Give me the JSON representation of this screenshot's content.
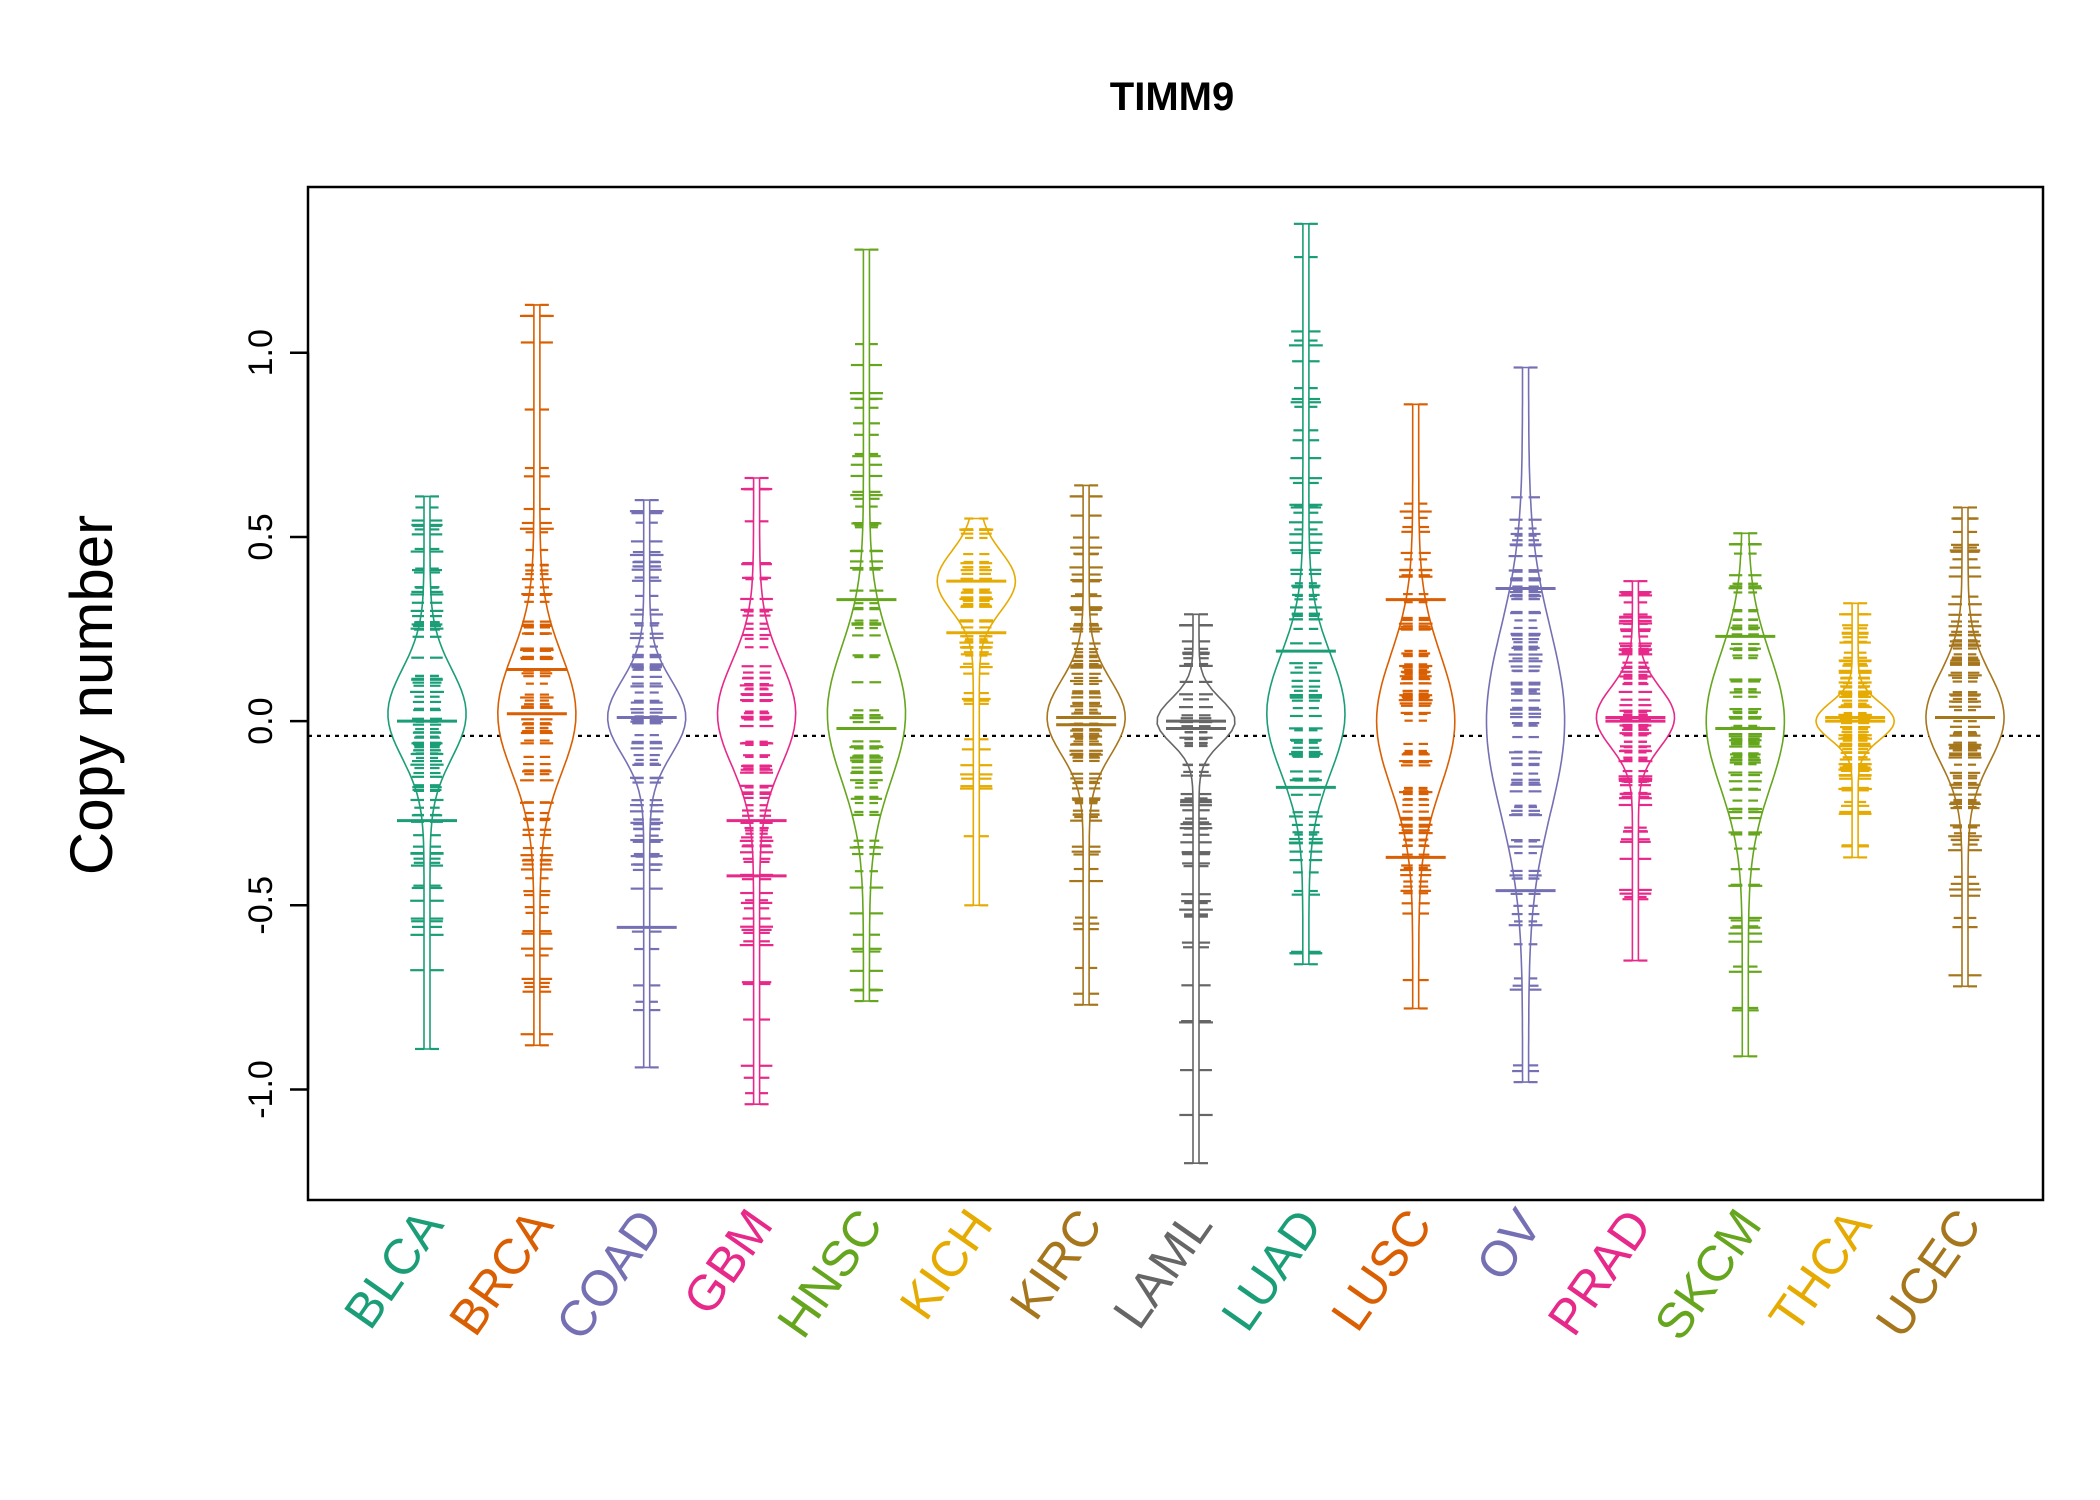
{
  "chart_data": {
    "type": "beanplot",
    "title": "TIMM9",
    "ylabel": "Copy number",
    "ylim": [
      -1.3,
      1.45
    ],
    "yticks": [
      -1.0,
      -0.5,
      0.0,
      0.5,
      1.0
    ],
    "ytick_labels": [
      "-1.0",
      "-0.5",
      "0.0",
      "0.5",
      "1.0"
    ],
    "reference_line": -0.04,
    "categories": [
      "BLCA",
      "BRCA",
      "COAD",
      "GBM",
      "HNSC",
      "KICH",
      "KIRC",
      "LAML",
      "LUAD",
      "LUSC",
      "OV",
      "PRAD",
      "SKCM",
      "THCA",
      "UCEC"
    ],
    "series": [
      {
        "category": "BLCA",
        "color": "#1B9E77",
        "min": -0.89,
        "max": 0.61,
        "median": -0.27,
        "mean_line": 0.0,
        "peak": 0.02,
        "spread": 0.12
      },
      {
        "category": "BRCA",
        "color": "#D95F02",
        "min": -0.88,
        "max": 1.13,
        "median": 0.02,
        "mean_line": 0.14,
        "peak": 0.02,
        "spread": 0.16
      },
      {
        "category": "COAD",
        "color": "#7570B3",
        "min": -0.94,
        "max": 0.6,
        "median": -0.56,
        "mean_line": 0.01,
        "peak": 0.01,
        "spread": 0.1
      },
      {
        "category": "GBM",
        "color": "#E7298A",
        "min": -1.04,
        "max": 0.66,
        "median": -0.42,
        "mean_line": -0.27,
        "peak": 0.02,
        "spread": 0.14
      },
      {
        "category": "HNSC",
        "color": "#66A61E",
        "min": -0.76,
        "max": 1.28,
        "median": 0.33,
        "mean_line": -0.02,
        "peak": 0.02,
        "spread": 0.18
      },
      {
        "category": "KICH",
        "color": "#E6AB02",
        "min": -0.5,
        "max": 0.55,
        "median": 0.38,
        "mean_line": 0.24,
        "peak": 0.38,
        "spread": 0.08
      },
      {
        "category": "KIRC",
        "color": "#A6761D",
        "min": -0.77,
        "max": 0.64,
        "median": -0.01,
        "mean_line": 0.01,
        "peak": 0.01,
        "spread": 0.1
      },
      {
        "category": "LAML",
        "color": "#666666",
        "min": -1.2,
        "max": 0.29,
        "median": 0.0,
        "mean_line": -0.02,
        "peak": 0.0,
        "spread": 0.06
      },
      {
        "category": "LUAD",
        "color": "#1B9E77",
        "min": -0.66,
        "max": 1.35,
        "median": 0.19,
        "mean_line": -0.18,
        "peak": 0.02,
        "spread": 0.16
      },
      {
        "category": "LUSC",
        "color": "#D95F02",
        "min": -0.78,
        "max": 0.86,
        "median": 0.33,
        "mean_line": -0.37,
        "peak": 0.0,
        "spread": 0.18
      },
      {
        "category": "OV",
        "color": "#7570B3",
        "min": -0.98,
        "max": 0.96,
        "median": 0.36,
        "mean_line": -0.46,
        "peak": 0.0,
        "spread": 0.25
      },
      {
        "category": "PRAD",
        "color": "#E7298A",
        "min": -0.65,
        "max": 0.38,
        "median": 0.0,
        "mean_line": 0.01,
        "peak": 0.01,
        "spread": 0.08
      },
      {
        "category": "SKCM",
        "color": "#66A61E",
        "min": -0.91,
        "max": 0.51,
        "median": 0.23,
        "mean_line": -0.02,
        "peak": 0.0,
        "spread": 0.18
      },
      {
        "category": "THCA",
        "color": "#E6AB02",
        "min": -0.37,
        "max": 0.32,
        "median": 0.0,
        "mean_line": 0.01,
        "peak": 0.0,
        "spread": 0.05
      },
      {
        "category": "UCEC",
        "color": "#A6761D",
        "min": -0.72,
        "max": 0.58,
        "median": 0.01,
        "mean_line": 0.01,
        "peak": 0.01,
        "spread": 0.12
      }
    ]
  }
}
